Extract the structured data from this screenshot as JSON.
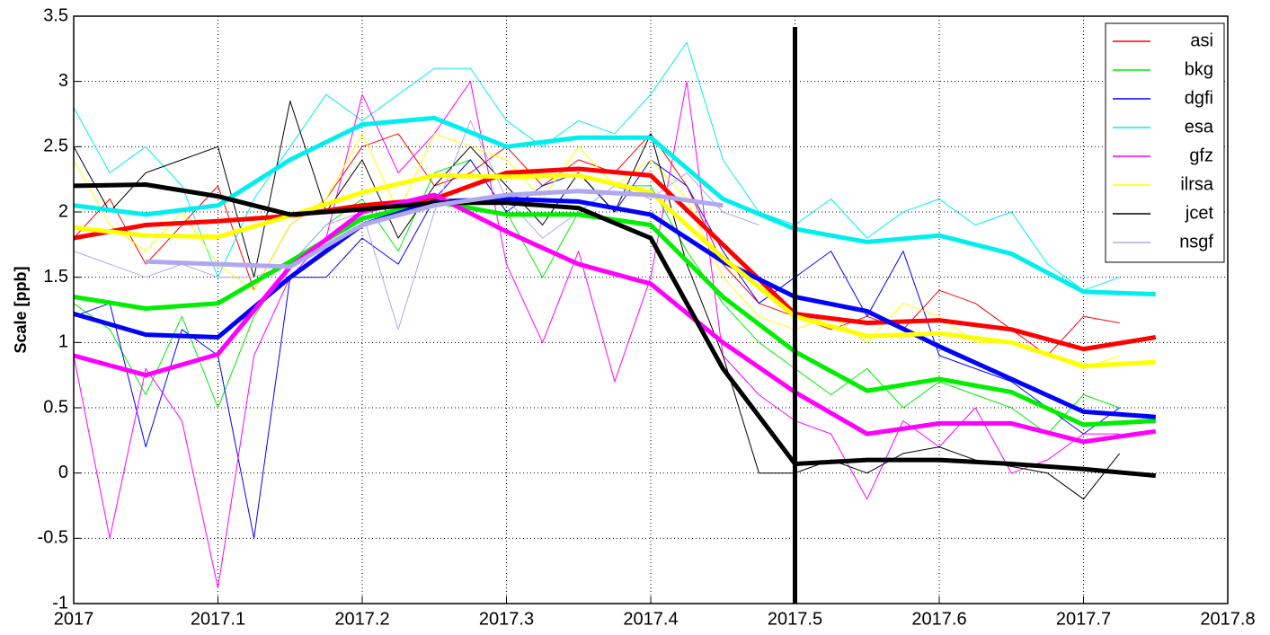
{
  "chart_data": {
    "type": "line",
    "ylabel": "Scale [ppb]",
    "xlim": [
      2017,
      2017.8
    ],
    "ylim": [
      -1,
      3.5
    ],
    "xticks": [
      2017,
      2017.1,
      2017.2,
      2017.3,
      2017.4,
      2017.5,
      2017.6,
      2017.7,
      2017.8
    ],
    "yticks": [
      -1,
      -0.5,
      0,
      0.5,
      1,
      1.5,
      2,
      2.5,
      3,
      3.5
    ],
    "grid": true,
    "legend": "upper right",
    "vline_x": 2017.5,
    "x": [
      2017,
      2017.025,
      2017.05,
      2017.075,
      2017.1,
      2017.125,
      2017.15,
      2017.175,
      2017.2,
      2017.225,
      2017.25,
      2017.275,
      2017.3,
      2017.325,
      2017.35,
      2017.375,
      2017.4,
      2017.425,
      2017.45,
      2017.475,
      2017.5,
      2017.525,
      2017.55,
      2017.575,
      2017.6,
      2017.625,
      2017.65,
      2017.675,
      2017.7,
      2017.725
    ],
    "trend_x": [
      2017,
      2017.05,
      2017.1,
      2017.15,
      2017.2,
      2017.25,
      2017.3,
      2017.35,
      2017.4,
      2017.45,
      2017.5,
      2017.55,
      2017.6,
      2017.65,
      2017.7,
      2017.75
    ],
    "series": [
      {
        "name": "asi",
        "color": "#ff0000",
        "values": [
          1.8,
          2.1,
          1.6,
          1.9,
          2.2,
          1.4,
          1.9,
          2.1,
          2.5,
          2.6,
          2.2,
          2.3,
          2.5,
          2.2,
          2.4,
          2.3,
          2.6,
          2.2,
          1.6,
          1.3,
          1.2,
          1.1,
          1.2,
          1.1,
          1.4,
          1.3,
          1.1,
          0.9,
          1.2,
          1.15
        ],
        "trend": [
          1.8,
          1.9,
          1.93,
          1.97,
          2.05,
          2.1,
          2.3,
          2.33,
          2.28,
          1.75,
          1.22,
          1.15,
          1.17,
          1.1,
          0.95,
          1.04
        ]
      },
      {
        "name": "bkg",
        "color": "#00ee00",
        "values": [
          1.3,
          1.1,
          0.6,
          1.2,
          0.5,
          1.2,
          1.6,
          1.9,
          2.1,
          1.7,
          2.3,
          2.4,
          2.0,
          1.5,
          2.0,
          2.2,
          2.2,
          1.7,
          1.3,
          1.0,
          0.8,
          0.6,
          0.8,
          0.5,
          0.7,
          0.6,
          0.5,
          0.3,
          0.6,
          0.5
        ],
        "trend": [
          1.35,
          1.26,
          1.3,
          1.62,
          1.95,
          2.08,
          1.98,
          1.98,
          1.9,
          1.35,
          0.93,
          0.63,
          0.72,
          0.62,
          0.37,
          0.4
        ]
      },
      {
        "name": "dgfi",
        "color": "#0000ff",
        "values": [
          1.2,
          1.3,
          0.2,
          1.1,
          0.9,
          -0.5,
          1.5,
          1.5,
          1.8,
          1.6,
          2.1,
          2.4,
          2.0,
          2.2,
          2.3,
          2.0,
          2.4,
          2.2,
          1.7,
          1.3,
          1.5,
          1.7,
          1.2,
          1.7,
          0.9,
          0.8,
          0.7,
          0.5,
          0.3,
          0.5
        ],
        "trend": [
          1.22,
          1.06,
          1.04,
          1.5,
          1.9,
          2.08,
          2.1,
          2.08,
          1.98,
          1.62,
          1.35,
          1.24,
          0.97,
          0.72,
          0.47,
          0.43
        ]
      },
      {
        "name": "esa",
        "color": "#00eeee",
        "values": [
          2.8,
          2.3,
          2.5,
          2.2,
          1.5,
          2.1,
          2.5,
          2.9,
          2.7,
          2.9,
          3.1,
          3.1,
          2.7,
          2.5,
          2.7,
          2.6,
          2.9,
          3.3,
          2.4,
          2.0,
          1.9,
          2.1,
          1.8,
          2.0,
          2.1,
          1.9,
          2.0,
          1.6,
          1.4,
          1.5
        ],
        "trend": [
          2.05,
          1.98,
          2.05,
          2.4,
          2.67,
          2.72,
          2.5,
          2.57,
          2.57,
          2.1,
          1.87,
          1.77,
          1.82,
          1.68,
          1.39,
          1.37
        ]
      },
      {
        "name": "gfz",
        "color": "#ff00ff",
        "values": [
          0.9,
          -0.5,
          0.8,
          0.4,
          -0.88,
          0.9,
          1.5,
          1.8,
          2.9,
          2.3,
          2.6,
          3.0,
          1.6,
          1.0,
          1.7,
          0.7,
          1.5,
          3.0,
          0.9,
          0.6,
          0.4,
          0.3,
          -0.2,
          0.4,
          0.2,
          0.5,
          0.0,
          0.1,
          0.3,
          0.3
        ],
        "trend": [
          0.9,
          0.75,
          0.91,
          1.58,
          2.0,
          2.13,
          1.85,
          1.6,
          1.45,
          1.0,
          0.62,
          0.3,
          0.38,
          0.38,
          0.24,
          0.32
        ]
      },
      {
        "name": "ilrsa",
        "color": "#ffff00",
        "values": [
          2.4,
          1.9,
          1.7,
          2.0,
          1.6,
          1.4,
          1.9,
          2.1,
          2.6,
          2.0,
          2.6,
          2.5,
          2.4,
          2.1,
          2.5,
          2.2,
          2.4,
          2.1,
          1.5,
          1.2,
          1.1,
          1.2,
          1.0,
          1.3,
          1.2,
          1.0,
          1.0,
          0.9,
          0.8,
          0.9
        ],
        "trend": [
          1.88,
          1.82,
          1.81,
          1.97,
          2.15,
          2.28,
          2.27,
          2.28,
          2.15,
          1.65,
          1.2,
          1.05,
          1.07,
          1.0,
          0.82,
          0.85
        ]
      },
      {
        "name": "jcet",
        "color": "#000000",
        "values": [
          2.5,
          2.0,
          2.3,
          2.4,
          2.5,
          1.5,
          2.85,
          2.0,
          2.4,
          1.8,
          2.2,
          2.5,
          2.2,
          1.9,
          2.3,
          2.0,
          2.6,
          1.6,
          0.9,
          0.0,
          0.0,
          0.1,
          0.0,
          0.15,
          0.2,
          0.1,
          0.05,
          0.0,
          -0.2,
          0.15
        ],
        "trend": [
          2.2,
          2.21,
          2.12,
          1.98,
          2.02,
          2.07,
          2.07,
          2.03,
          1.8,
          0.8,
          0.07,
          0.1,
          0.1,
          0.07,
          0.03,
          -0.02
        ]
      },
      {
        "name": "nsgf",
        "color": "#b0a8ee",
        "values": [
          1.7,
          1.6,
          1.5,
          1.6,
          1.5,
          1.5,
          1.6,
          1.9,
          2.0,
          1.1,
          2.0,
          2.7,
          2.1,
          1.8,
          2.0,
          2.2,
          2.1,
          2.3,
          2.0,
          1.9,
          null,
          null,
          null,
          null,
          null,
          null,
          null,
          null,
          null,
          null
        ],
        "trend": [
          null,
          1.62,
          1.6,
          1.58,
          1.9,
          2.05,
          2.13,
          2.16,
          2.13,
          2.05,
          null,
          null,
          null,
          null,
          null,
          null
        ]
      }
    ]
  }
}
